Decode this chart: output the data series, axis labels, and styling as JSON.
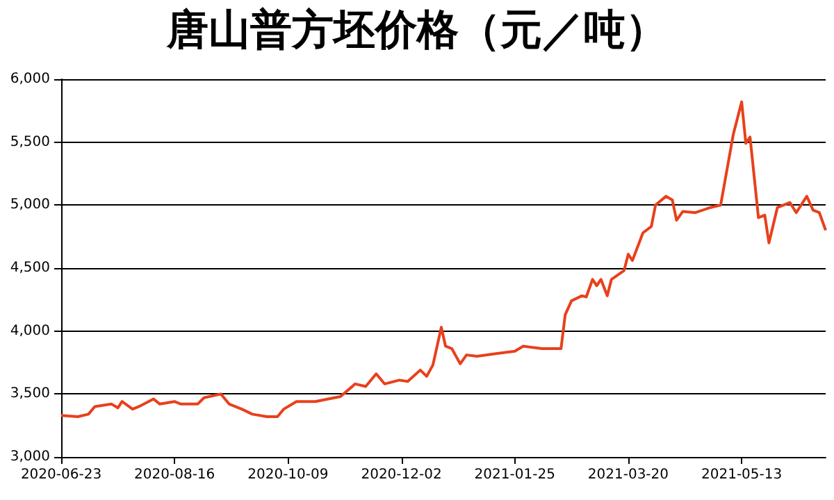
{
  "chart_data": {
    "type": "line",
    "title": "唐山普方坯价格（元／吨）",
    "x": [
      "2020-06-23",
      "2020-07-01",
      "2020-07-06",
      "2020-07-09",
      "2020-07-17",
      "2020-07-20",
      "2020-07-22",
      "2020-07-27",
      "2020-07-30",
      "2020-08-06",
      "2020-08-09",
      "2020-08-16",
      "2020-08-19",
      "2020-08-27",
      "2020-08-30",
      "2020-09-07",
      "2020-09-11",
      "2020-09-17",
      "2020-09-22",
      "2020-09-29",
      "2020-10-04",
      "2020-10-07",
      "2020-10-13",
      "2020-10-22",
      "2020-11-03",
      "2020-11-10",
      "2020-11-15",
      "2020-11-20",
      "2020-11-24",
      "2020-12-01",
      "2020-12-05",
      "2020-12-11",
      "2020-12-14",
      "2020-12-17",
      "2020-12-21",
      "2020-12-23",
      "2020-12-26",
      "2020-12-30",
      "2021-01-02",
      "2021-01-07",
      "2021-01-16",
      "2021-01-25",
      "2021-01-29",
      "2021-02-07",
      "2021-02-16",
      "2021-02-18",
      "2021-02-21",
      "2021-02-26",
      "2021-02-28",
      "2021-03-03",
      "2021-03-05",
      "2021-03-07",
      "2021-03-10",
      "2021-03-12",
      "2021-03-18",
      "2021-03-20",
      "2021-03-22",
      "2021-03-27",
      "2021-03-31",
      "2021-04-02",
      "2021-04-07",
      "2021-04-10",
      "2021-04-12",
      "2021-04-15",
      "2021-04-21",
      "2021-04-28",
      "2021-05-03",
      "2021-05-09",
      "2021-05-13",
      "2021-05-15",
      "2021-05-17",
      "2021-05-21",
      "2021-05-24",
      "2021-05-26",
      "2021-05-30",
      "2021-06-05",
      "2021-06-08",
      "2021-06-13",
      "2021-06-16",
      "2021-06-19",
      "2021-06-22"
    ],
    "series": [
      {
        "color": "#e8401c",
        "values": [
          3330,
          3320,
          3340,
          3400,
          3420,
          3390,
          3440,
          3380,
          3400,
          3460,
          3420,
          3440,
          3420,
          3420,
          3470,
          3500,
          3420,
          3380,
          3340,
          3320,
          3320,
          3380,
          3440,
          3440,
          3480,
          3580,
          3560,
          3660,
          3580,
          3610,
          3600,
          3690,
          3640,
          3730,
          4030,
          3880,
          3860,
          3740,
          3810,
          3800,
          3820,
          3840,
          3880,
          3860,
          3860,
          4130,
          4240,
          4280,
          4270,
          4410,
          4360,
          4410,
          4280,
          4410,
          4480,
          4610,
          4560,
          4780,
          4830,
          5000,
          5070,
          5040,
          4880,
          4950,
          4940,
          4980,
          5000,
          5560,
          5820,
          5490,
          5540,
          4900,
          4920,
          4700,
          4980,
          5020,
          4940,
          5070,
          4960,
          4940,
          4800
        ]
      }
    ],
    "xlim": [
      "2020-06-23",
      "2021-06-22"
    ],
    "xticks": [
      "2020-06-23",
      "2020-08-16",
      "2020-10-09",
      "2020-12-02",
      "2021-01-25",
      "2021-03-20",
      "2021-05-13"
    ],
    "ylim": [
      3000,
      6000
    ],
    "yticks": [
      {
        "value": 3000,
        "label": "3,000"
      },
      {
        "value": 3500,
        "label": "3,500"
      },
      {
        "value": 4000,
        "label": "4,000"
      },
      {
        "value": 4500,
        "label": "4,500"
      },
      {
        "value": 5000,
        "label": "5,000"
      },
      {
        "value": 5500,
        "label": "5,500"
      },
      {
        "value": 6000,
        "label": "6,000"
      }
    ],
    "grid": "y",
    "marker": "none",
    "line_style": "solid"
  }
}
